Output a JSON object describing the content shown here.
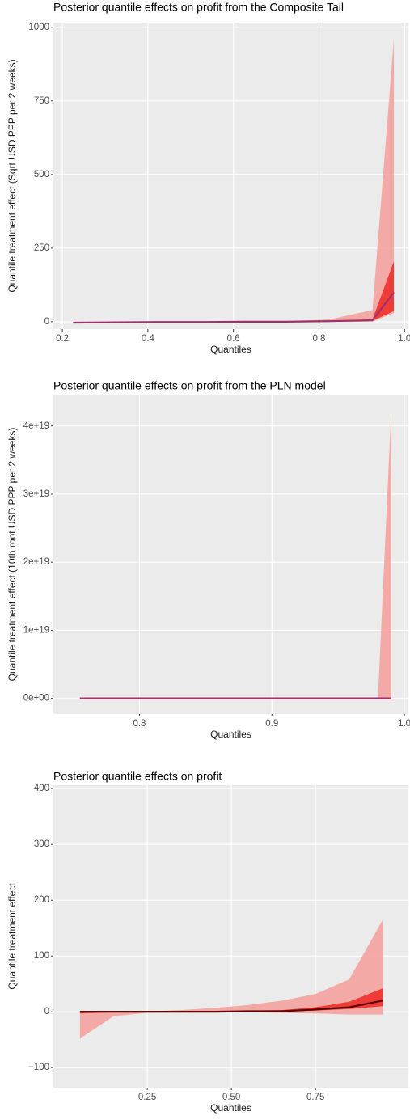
{
  "chart_data": [
    {
      "type": "line",
      "title": "Posterior quantile effects on profit from the Composite Tail",
      "x_label": "Quantiles",
      "y_label": "Quantile treatment effect (Sqrt USD PPP per 2 weeks)",
      "xlim": [
        0.179,
        1.009
      ],
      "ylim": [
        -25,
        1016
      ],
      "xticks": [
        0.2,
        0.4,
        0.6,
        0.8,
        {
          "value": 1.0,
          "label": "1.0"
        }
      ],
      "yticks": [
        0,
        250,
        500,
        750,
        1000
      ],
      "grid": true,
      "x": [
        0.225,
        0.325,
        0.425,
        0.525,
        0.625,
        0.725,
        0.825,
        0.925,
        0.975
      ],
      "bands": [
        {
          "color": "#f4a3a0",
          "lower": [
            -5,
            -4,
            -3,
            -3,
            -2,
            -2,
            -1,
            0,
            30
          ],
          "upper": [
            -1,
            0,
            0,
            1,
            1,
            2,
            8,
            40,
            960
          ]
        },
        {
          "color": "#f0302c",
          "lower": [
            -4,
            -3,
            -2,
            -2,
            -1,
            -1,
            1,
            3,
            36
          ],
          "upper": [
            -2,
            -1,
            0,
            0,
            1,
            1,
            4,
            8,
            205
          ]
        }
      ],
      "series": [
        {
          "color": "#a0306a",
          "values": [
            -3,
            -2,
            -1,
            -1,
            0,
            0,
            2,
            5,
            100
          ]
        }
      ]
    },
    {
      "type": "line",
      "title": "Posterior quantile effects on profit from the PLN model",
      "x_label": "Quantiles",
      "y_label": "Quantile treatment effect (10th root USD PPP per 2 weeks)",
      "xlim": [
        0.735,
        1.003
      ],
      "ylim": [
        -2.3e+18,
        4.46e+19
      ],
      "xticks": [
        0.8,
        0.9,
        {
          "value": 1.0,
          "label": "1.0"
        }
      ],
      "yticks": [
        {
          "value": 0,
          "label": "0e+00"
        },
        {
          "value": 1e+19,
          "label": "1e+19"
        },
        {
          "value": 2e+19,
          "label": "2e+19"
        },
        {
          "value": 3e+19,
          "label": "3e+19"
        },
        {
          "value": 4e+19,
          "label": "4e+19"
        }
      ],
      "grid": true,
      "x": [
        0.755,
        0.8,
        0.85,
        0.9,
        0.95,
        0.98,
        0.99
      ],
      "bands": [
        {
          "color": "#f4a3a0",
          "lower": [
            0,
            0,
            0,
            0,
            0,
            0,
            0
          ],
          "upper": [
            0,
            0,
            0,
            0,
            0,
            0,
            4.2e+19
          ]
        }
      ],
      "series": [
        {
          "color": "#a0306a",
          "values": [
            0,
            0,
            0,
            0,
            0,
            0,
            0
          ]
        }
      ]
    },
    {
      "type": "line",
      "title": "Posterior quantile effects on profit",
      "x_label": "Quantiles",
      "y_label": "Quantile treatment effect",
      "xlim": [
        -0.029,
        1.026
      ],
      "ylim": [
        -136,
        406
      ],
      "xticks": [
        0.25,
        {
          "value": 0.5,
          "label": "0.50"
        },
        0.75
      ],
      "yticks": [
        {
          "value": -100,
          "label": "−100"
        },
        0,
        100,
        200,
        300,
        400
      ],
      "grid": true,
      "x": [
        0.05,
        0.15,
        0.25,
        0.35,
        0.45,
        0.55,
        0.65,
        0.75,
        0.85,
        0.95
      ],
      "bands": [
        {
          "color": "#f4a3a0",
          "lower": [
            -48,
            -8,
            -2,
            -1,
            -1,
            -1,
            -2,
            -3,
            -5,
            -5
          ],
          "upper": [
            0,
            0,
            1,
            3,
            7,
            12,
            20,
            32,
            58,
            165
          ]
        },
        {
          "color": "#f0302c",
          "lower": [
            -3,
            -1,
            -1,
            0,
            0,
            0,
            0,
            2,
            5,
            10
          ],
          "upper": [
            1,
            1,
            1,
            1,
            1,
            2,
            3,
            8,
            18,
            42
          ]
        }
      ],
      "series": [
        {
          "color": "#5a0808",
          "values": [
            0,
            0,
            0,
            0,
            0,
            1,
            1,
            4,
            8,
            20
          ]
        }
      ]
    }
  ]
}
